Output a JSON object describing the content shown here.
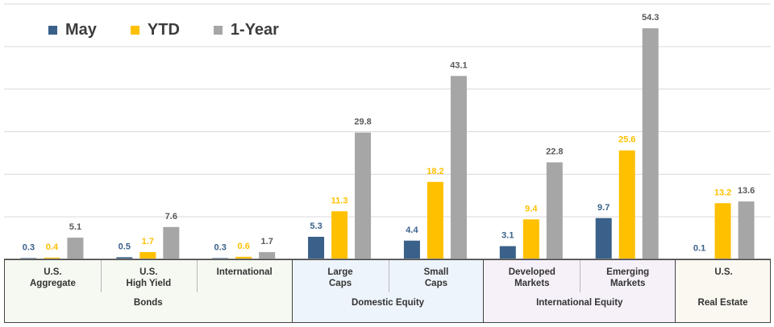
{
  "legend": [
    {
      "label": "May",
      "color": "#3a6189"
    },
    {
      "label": "YTD",
      "color": "#ffc000"
    },
    {
      "label": "1-Year",
      "color": "#a6a6a6"
    }
  ],
  "groups": [
    {
      "label": "Bonds",
      "bg": "#f6f9f1",
      "subs": [
        [
          "U.S.",
          "Aggregate"
        ],
        [
          "U.S.",
          "High Yield"
        ],
        [
          "International"
        ]
      ]
    },
    {
      "label": "Domestic Equity",
      "bg": "#eef4fb",
      "subs": [
        [
          "Large",
          "Caps"
        ],
        [
          "Small",
          "Caps"
        ]
      ]
    },
    {
      "label": "International Equity",
      "bg": "#f6f0f9",
      "subs": [
        [
          "Developed",
          "Markets"
        ],
        [
          "Emerging",
          "Markets"
        ]
      ]
    },
    {
      "label": "Real Estate",
      "bg": "#faf8f1",
      "subs": [
        [
          "U.S."
        ]
      ]
    }
  ],
  "chart_data": {
    "type": "bar",
    "categories": [
      "U.S. Aggregate",
      "U.S. High Yield",
      "International",
      "Large Caps",
      "Small Caps",
      "Developed Markets",
      "Emerging Markets",
      "U.S. Real Estate"
    ],
    "series": [
      {
        "name": "May",
        "color": "#3a6189",
        "values": [
          0.3,
          0.5,
          0.3,
          5.3,
          4.4,
          3.1,
          9.7,
          0.1
        ]
      },
      {
        "name": "YTD",
        "color": "#ffc000",
        "values": [
          0.4,
          1.7,
          0.6,
          11.3,
          18.2,
          9.4,
          25.6,
          13.2
        ]
      },
      {
        "name": "1-Year",
        "color": "#a6a6a6",
        "values": [
          5.1,
          7.6,
          1.7,
          29.8,
          43.1,
          22.8,
          54.3,
          13.6
        ]
      }
    ],
    "label_colors": [
      "#3a6189",
      "#ffc000",
      "#595959"
    ],
    "ylim": [
      0,
      60
    ],
    "grid": true,
    "legend_position": "top-left"
  }
}
